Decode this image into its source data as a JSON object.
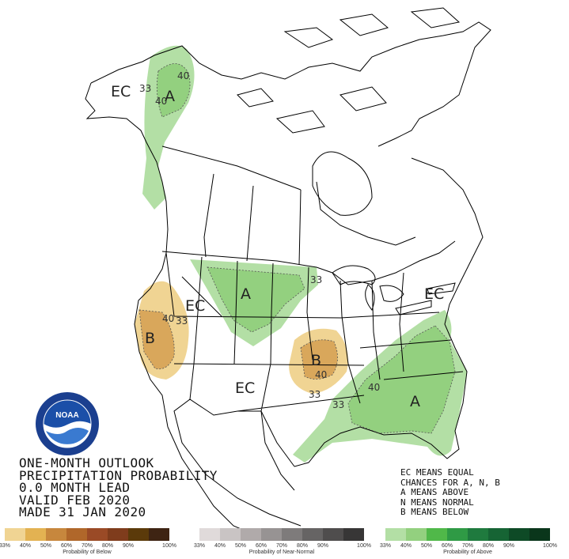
{
  "title_lines": [
    "ONE-MONTH OUTLOOK",
    "PRECIPITATION PROBABILITY",
    "0.0 MONTH LEAD",
    "VALID FEB 2020",
    "MADE 31 JAN 2020"
  ],
  "legend_notes": [
    "EC MEANS EQUAL",
    "CHANCES FOR A, N, B",
    "A MEANS ABOVE",
    "N MEANS NORMAL",
    "B MEANS BELOW"
  ],
  "region_labels": {
    "alaska_ec": "EC",
    "alaska_a": "A",
    "plains_a": "A",
    "west_ec": "EC",
    "california_b": "B",
    "southwest_ec": "EC",
    "ozark_b": "B",
    "southeast_a": "A",
    "northeast_ec": "EC"
  },
  "contour_labels": {
    "ak_33": "33",
    "ak_40a": "40",
    "ak_40b": "40",
    "ca_40": "40",
    "ca_33": "33",
    "mid_33": "33",
    "ozark_40": "40",
    "ozark_33a": "33",
    "ozark_33b": "33",
    "se_40": "40"
  },
  "scales": {
    "below": {
      "title": "Probability of Below",
      "ticks": [
        "33%",
        "40%",
        "50%",
        "60%",
        "70%",
        "80%",
        "90%",
        "100%"
      ],
      "colors": [
        "#f0d493",
        "#e3b252",
        "#c7873d",
        "#b0672a",
        "#9a4a26",
        "#7f3c1c",
        "#5b3a0a",
        "#3e2413"
      ]
    },
    "near_normal": {
      "title": "Probability of Near-Normal",
      "ticks": [
        "33%",
        "40%",
        "50%",
        "60%",
        "70%",
        "80%",
        "90%",
        "100%"
      ],
      "colors": [
        "#e0dada",
        "#c9c4c4",
        "#b0aaaa",
        "#979393",
        "#7e7b7b",
        "#666464",
        "#4f4d4d",
        "#373636"
      ]
    },
    "above": {
      "title": "Probability of Above",
      "ticks": [
        "33%",
        "40%",
        "50%",
        "60%",
        "70%",
        "80%",
        "90%",
        "100%"
      ],
      "colors": [
        "#b3dfa5",
        "#93d07f",
        "#50b849",
        "#2f9a45",
        "#1f7a3e",
        "#166434",
        "#0e4a26",
        "#0a361b"
      ]
    }
  },
  "logo": {
    "center_text": "NOAA",
    "ring_top": "NATIONAL OCEANIC AND ATMOSPHERIC ADMINISTRATION",
    "ring_bottom": "U.S. DEPARTMENT OF COMMERCE"
  },
  "colors": {
    "above_light": "#b3dfa5",
    "above_mid": "#93d07f",
    "below_light": "#f0d493",
    "below_mid": "#d9a75b"
  }
}
